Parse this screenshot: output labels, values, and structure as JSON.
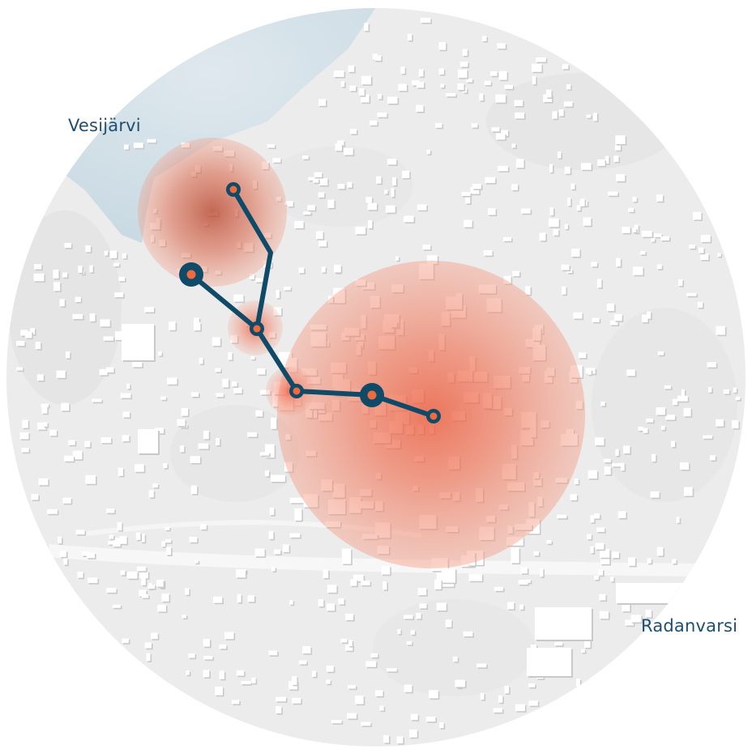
{
  "labels": {
    "lake": "Vesijärvi",
    "district": "Radanvarsi"
  },
  "colors": {
    "route": "#0f4a68",
    "node_fill": "#ef6a3c",
    "heat": "#ee6447",
    "lake": "#c9dbe4",
    "map_bg": "#ececec",
    "building": "#ffffff",
    "label_text": "#1f4f6e"
  },
  "route": {
    "stops": [
      {
        "id": "stop-harbour-north",
        "kind": "small"
      },
      {
        "id": "stop-harbour-hub",
        "kind": "large"
      },
      {
        "id": "stop-hill",
        "kind": "small"
      },
      {
        "id": "stop-centre-west",
        "kind": "small"
      },
      {
        "id": "stop-centre-hub",
        "kind": "large"
      },
      {
        "id": "stop-centre-east",
        "kind": "small"
      }
    ]
  }
}
